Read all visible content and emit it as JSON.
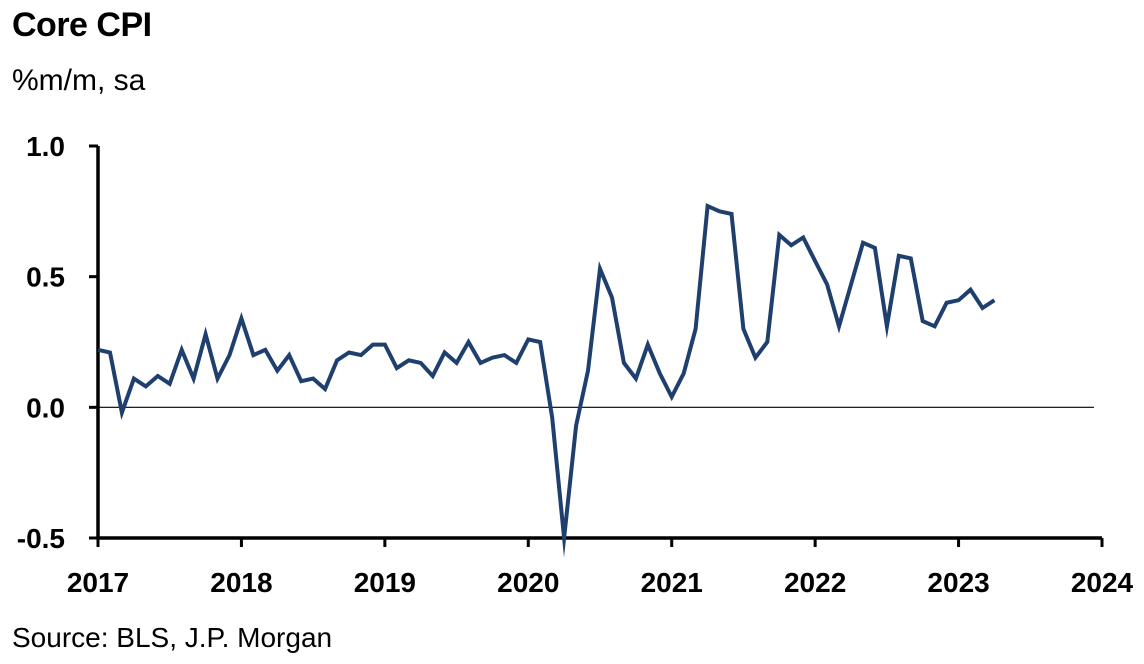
{
  "chart_data": {
    "type": "line",
    "title": "Core CPI",
    "subtitle": "%m/m, sa",
    "source": "Source: BLS, J.P. Morgan",
    "ylim": [
      -0.5,
      1.0
    ],
    "yticks": [
      1.0,
      0.5,
      0.0,
      -0.5
    ],
    "ytick_labels": [
      "1.0",
      "0.5",
      "0.0",
      "-0.5"
    ],
    "xlim": [
      2017,
      2024
    ],
    "xticks": [
      2017,
      2018,
      2019,
      2020,
      2021,
      2022,
      2023,
      2024
    ],
    "xtick_labels": [
      "2017",
      "2018",
      "2019",
      "2020",
      "2021",
      "2022",
      "2023",
      "2024"
    ],
    "zero_line": true,
    "grid": false,
    "line_color": "#1f3f6e",
    "series": [
      {
        "start": "2017-01",
        "frequency": "monthly",
        "values": [
          0.22,
          0.21,
          -0.02,
          0.11,
          0.08,
          0.12,
          0.09,
          0.22,
          0.11,
          0.28,
          0.11,
          0.2,
          0.34,
          0.2,
          0.22,
          0.14,
          0.2,
          0.1,
          0.11,
          0.07,
          0.18,
          0.21,
          0.2,
          0.24,
          0.24,
          0.15,
          0.18,
          0.17,
          0.12,
          0.21,
          0.17,
          0.25,
          0.17,
          0.19,
          0.2,
          0.17,
          0.26,
          0.25,
          -0.04,
          -0.5,
          -0.07,
          0.14,
          0.53,
          0.42,
          0.17,
          0.11,
          0.24,
          0.13,
          0.04,
          0.13,
          0.3,
          0.77,
          0.75,
          0.74,
          0.3,
          0.19,
          0.25,
          0.66,
          0.62,
          0.65,
          0.56,
          0.47,
          0.31,
          0.47,
          0.63,
          0.61,
          0.31,
          0.58,
          0.57,
          0.33,
          0.31,
          0.4,
          0.41,
          0.45,
          0.38,
          0.41
        ]
      }
    ]
  }
}
